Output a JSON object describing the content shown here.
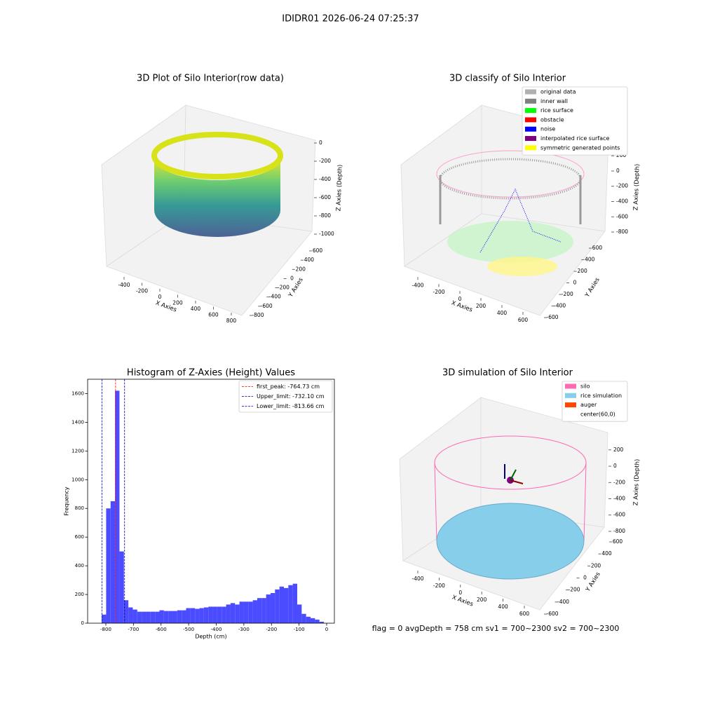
{
  "title": "IDIDR01 2026-06-24 07:25:37",
  "footer": "flag = 0     avgDepth = 758 cm  sv1 = 700~2300  sv2 = 700~2300",
  "chart_data": [
    {
      "type": "scatter3d",
      "title": "3D Plot of Silo Interior(row data)",
      "xlabel": "X Axies",
      "ylabel": "Y Axies",
      "zlabel": "Z Axies (Depth)",
      "xlim": [
        -530,
        830
      ],
      "xticks": [
        -400,
        -200,
        0,
        200,
        400,
        600,
        800
      ],
      "ylim": [
        -900,
        700
      ],
      "yticks": [
        -800,
        -600,
        -400,
        -200,
        0,
        200,
        400,
        600
      ],
      "zlim": [
        -1050,
        50
      ],
      "zticks": [
        -1000,
        -800,
        -600,
        -400,
        -200,
        0
      ]
    },
    {
      "type": "scatter3d",
      "title": "3D classify of Silo Interior",
      "xlabel": "X Axies",
      "ylabel": "Y Axies",
      "zlabel": "Z Axies (Depth)",
      "xlim": [
        -550,
        700
      ],
      "xticks": [
        -400,
        -200,
        0,
        200,
        400,
        600
      ],
      "ylim": [
        -700,
        700
      ],
      "yticks": [
        -600,
        -400,
        -200,
        0,
        200,
        400,
        600
      ],
      "zlim": [
        -900,
        280
      ],
      "zticks": [
        -800,
        -600,
        -400,
        -200,
        0,
        200
      ],
      "legend": [
        {
          "name": "original data",
          "color": "#b0b0b0"
        },
        {
          "name": "inner wall",
          "color": "#808080"
        },
        {
          "name": "rice surface",
          "color": "#00ff00"
        },
        {
          "name": "obstacle",
          "color": "#ff0000"
        },
        {
          "name": "noise",
          "color": "#0000ff"
        },
        {
          "name": "interpolated rice surface",
          "color": "#800080"
        },
        {
          "name": "symmetric generated points",
          "color": "#ffff00"
        }
      ]
    },
    {
      "type": "histogram",
      "title": "Histogram of Z-Axies (Height) Values",
      "xlabel": "Depth (cm)",
      "ylabel": "Frequency",
      "color": "#4b4bff",
      "bins": [
        -815,
        -798.9,
        -782.8,
        -766.7,
        -750.6,
        -734.5,
        -718.4,
        -702.3,
        -686.2,
        -670.1,
        -654,
        -637.9,
        -621.8,
        -605.7,
        -589.6,
        -573.5,
        -557.4,
        -541.3,
        -525.2,
        -509.1,
        -493,
        -476.9,
        -460.8,
        -444.7,
        -428.6,
        -412.5,
        -396.4,
        -380.3,
        -364.2,
        -348.1,
        -332,
        -315.9,
        -299.8,
        -283.7,
        -267.6,
        -251.5,
        -235.4,
        -219.3,
        -203.2,
        -187.1,
        -171,
        -154.9,
        -138.8,
        -122.7,
        -106.6,
        -90.5,
        -74.4,
        -58.3,
        -42.2,
        -26.1,
        -10
      ],
      "counts": [
        60,
        800,
        850,
        1620,
        500,
        160,
        110,
        95,
        80,
        80,
        80,
        80,
        80,
        90,
        85,
        85,
        85,
        90,
        90,
        105,
        105,
        100,
        105,
        110,
        115,
        115,
        115,
        115,
        130,
        140,
        130,
        150,
        150,
        150,
        160,
        175,
        175,
        200,
        210,
        235,
        255,
        245,
        265,
        275,
        130,
        65,
        45,
        35,
        25,
        10
      ],
      "xlim": [
        -866,
        28
      ],
      "xticks": [
        -800,
        -700,
        -600,
        -500,
        -400,
        -300,
        -200,
        -100,
        0
      ],
      "ylim": [
        0,
        1700
      ],
      "yticks": [
        0,
        200,
        400,
        600,
        800,
        1000,
        1200,
        1400,
        1600
      ],
      "vlines": [
        {
          "name": "first_peak: -764.73 cm",
          "value": -764.73,
          "color": "#ff0000"
        },
        {
          "name": "Upper_limit: -732.10 cm",
          "value": -732.1,
          "color": "#00008b"
        },
        {
          "name": "Lower_limit: -813.66 cm",
          "value": -813.66,
          "color": "#0000ff"
        }
      ],
      "legend_loc": "upper right"
    },
    {
      "type": "surface3d",
      "title": "3D simulation of Silo Interior",
      "xlabel": "X Axies",
      "ylabel": "Y Axies",
      "zlabel": "Z Axies (Depth)",
      "xlim": [
        -550,
        700
      ],
      "xticks": [
        -400,
        -200,
        0,
        200,
        400,
        600
      ],
      "ylim": [
        -700,
        700
      ],
      "yticks": [
        -600,
        -400,
        -200,
        0,
        200,
        400,
        600
      ],
      "zlim": [
        -900,
        330
      ],
      "zticks": [
        -800,
        -600,
        -400,
        -200,
        0,
        200
      ],
      "legend": [
        {
          "name": "silo",
          "color": "#ff69b4"
        },
        {
          "name": "rice simulation",
          "color": "#87ceeb"
        },
        {
          "name": "auger",
          "color": "#ff4500"
        },
        {
          "name": "center(60,0)",
          "color": "#ffffff"
        }
      ]
    }
  ]
}
